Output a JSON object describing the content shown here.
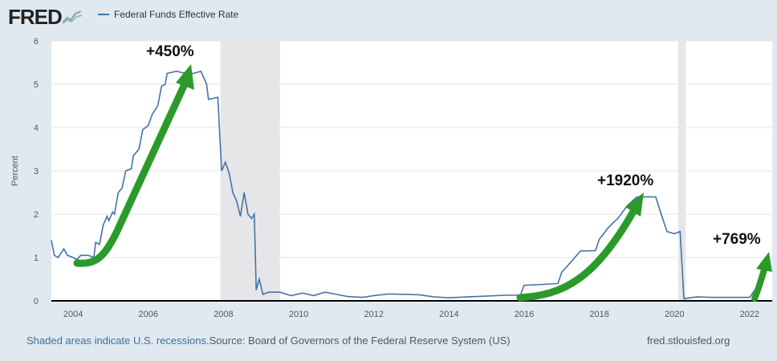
{
  "header": {
    "logo": "FRED",
    "legend": "Federal Funds Effective Rate"
  },
  "footer": {
    "recessions": "Shaded areas indicate U.S. recessions.",
    "source": "Source: Board of Governors of the Federal Reserve System (US)",
    "site": "fred.stlouisfed.org"
  },
  "colors": {
    "line": "#4572a7",
    "arrow": "#2a9a2a",
    "recession": "#e6e6e9"
  },
  "annotations": [
    {
      "text": "+450%"
    },
    {
      "text": "+1920%"
    },
    {
      "text": "+769%"
    }
  ],
  "chart_data": {
    "type": "line",
    "title": "Federal Funds Effective Rate",
    "ylabel": "Percent",
    "xlabel": "",
    "xlim": [
      2003.42,
      2022.6
    ],
    "ylim": [
      0,
      6
    ],
    "xticks": [
      "2004",
      "2006",
      "2008",
      "2010",
      "2012",
      "2014",
      "2016",
      "2018",
      "2020",
      "2022"
    ],
    "yticks": [
      "0",
      "1",
      "2",
      "3",
      "4",
      "5",
      "6"
    ],
    "grid": true,
    "recessions": [
      [
        2007.92,
        2009.5
      ],
      [
        2020.1,
        2020.3
      ]
    ],
    "series": [
      {
        "name": "Federal Funds Effective Rate",
        "points": [
          [
            2003.42,
            1.4
          ],
          [
            2003.5,
            1.05
          ],
          [
            2003.6,
            1.0
          ],
          [
            2003.75,
            1.2
          ],
          [
            2003.85,
            1.05
          ],
          [
            2004.0,
            1.0
          ],
          [
            2004.1,
            0.95
          ],
          [
            2004.2,
            1.05
          ],
          [
            2004.4,
            1.05
          ],
          [
            2004.55,
            1.0
          ],
          [
            2004.6,
            1.35
          ],
          [
            2004.7,
            1.3
          ],
          [
            2004.8,
            1.75
          ],
          [
            2004.9,
            1.95
          ],
          [
            2004.95,
            1.85
          ],
          [
            2005.05,
            2.05
          ],
          [
            2005.1,
            2.0
          ],
          [
            2005.2,
            2.5
          ],
          [
            2005.3,
            2.6
          ],
          [
            2005.4,
            3.0
          ],
          [
            2005.55,
            3.05
          ],
          [
            2005.6,
            3.35
          ],
          [
            2005.75,
            3.5
          ],
          [
            2005.85,
            3.95
          ],
          [
            2006.0,
            4.05
          ],
          [
            2006.1,
            4.3
          ],
          [
            2006.25,
            4.5
          ],
          [
            2006.35,
            4.95
          ],
          [
            2006.45,
            5.0
          ],
          [
            2006.5,
            5.25
          ],
          [
            2006.75,
            5.3
          ],
          [
            2007.0,
            5.25
          ],
          [
            2007.2,
            5.25
          ],
          [
            2007.4,
            5.3
          ],
          [
            2007.55,
            5.0
          ],
          [
            2007.6,
            4.65
          ],
          [
            2007.85,
            4.7
          ],
          [
            2007.95,
            3.0
          ],
          [
            2008.05,
            3.2
          ],
          [
            2008.15,
            2.95
          ],
          [
            2008.25,
            2.5
          ],
          [
            2008.35,
            2.3
          ],
          [
            2008.45,
            1.95
          ],
          [
            2008.55,
            2.5
          ],
          [
            2008.65,
            2.0
          ],
          [
            2008.75,
            1.9
          ],
          [
            2008.82,
            2.0
          ],
          [
            2008.87,
            0.25
          ],
          [
            2008.95,
            0.5
          ],
          [
            2009.05,
            0.15
          ],
          [
            2009.2,
            0.2
          ],
          [
            2009.5,
            0.2
          ],
          [
            2009.8,
            0.12
          ],
          [
            2010.1,
            0.18
          ],
          [
            2010.4,
            0.12
          ],
          [
            2010.7,
            0.2
          ],
          [
            2011.0,
            0.15
          ],
          [
            2011.3,
            0.1
          ],
          [
            2011.7,
            0.08
          ],
          [
            2012.0,
            0.12
          ],
          [
            2012.4,
            0.16
          ],
          [
            2012.8,
            0.15
          ],
          [
            2013.2,
            0.14
          ],
          [
            2013.6,
            0.09
          ],
          [
            2014.0,
            0.07
          ],
          [
            2014.5,
            0.09
          ],
          [
            2015.0,
            0.11
          ],
          [
            2015.5,
            0.13
          ],
          [
            2015.9,
            0.13
          ],
          [
            2016.0,
            0.36
          ],
          [
            2016.5,
            0.38
          ],
          [
            2016.9,
            0.4
          ],
          [
            2017.0,
            0.66
          ],
          [
            2017.25,
            0.9
          ],
          [
            2017.5,
            1.15
          ],
          [
            2017.9,
            1.16
          ],
          [
            2018.0,
            1.42
          ],
          [
            2018.25,
            1.7
          ],
          [
            2018.5,
            1.91
          ],
          [
            2018.75,
            2.2
          ],
          [
            2019.0,
            2.4
          ],
          [
            2019.5,
            2.4
          ],
          [
            2019.6,
            2.13
          ],
          [
            2019.8,
            1.6
          ],
          [
            2020.0,
            1.55
          ],
          [
            2020.15,
            1.6
          ],
          [
            2020.25,
            0.05
          ],
          [
            2020.6,
            0.09
          ],
          [
            2021.0,
            0.08
          ],
          [
            2021.5,
            0.08
          ],
          [
            2022.0,
            0.08
          ],
          [
            2022.2,
            0.33
          ],
          [
            2022.35,
            0.8
          ],
          [
            2022.45,
            0.8
          ]
        ]
      }
    ]
  }
}
